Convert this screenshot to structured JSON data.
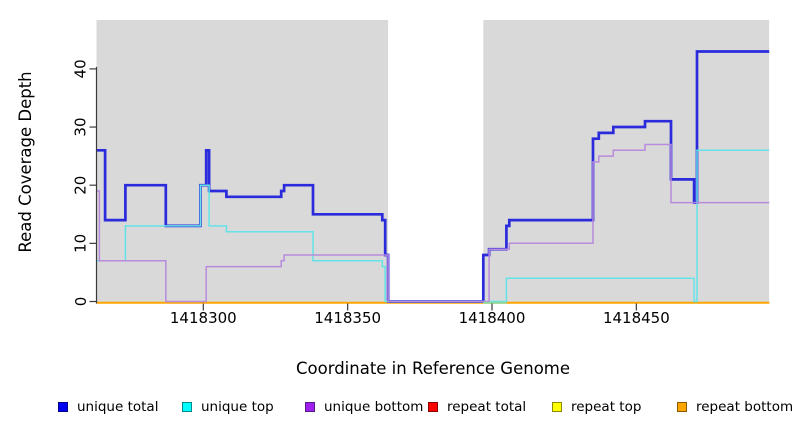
{
  "chart_data": {
    "type": "line",
    "subtype": "step",
    "title": "",
    "xlabel": "Coordinate in Reference Genome",
    "ylabel": "Read Coverage Depth",
    "xlim": [
      1418263,
      1418496
    ],
    "ylim": [
      0,
      48
    ],
    "x_ticks": [
      1418300,
      1418350,
      1418400,
      1418450
    ],
    "y_ticks": [
      0,
      10,
      20,
      30,
      40
    ],
    "grid": false,
    "background_color": "#D9D9D9",
    "background_regions": [
      {
        "from": 1418263,
        "to": 1418364
      },
      {
        "from": 1418397,
        "to": 1418496
      }
    ],
    "gap_region": {
      "from": 1418364,
      "to": 1418397
    },
    "axis_color": "#3a3a3a",
    "series": [
      {
        "name": "repeat total",
        "color": "#DD0000",
        "width": 1.5,
        "baseline_offset": 1.3,
        "steps": [
          [
            1418263,
            0
          ]
        ]
      },
      {
        "name": "repeat top",
        "color": "#F5F500",
        "width": 1.5,
        "baseline_offset": 1.3,
        "steps": [
          [
            1418263,
            0
          ]
        ]
      },
      {
        "name": "repeat bottom",
        "color": "#FFA500",
        "width": 2,
        "baseline_offset": 1.3,
        "steps": [
          [
            1418263,
            0
          ]
        ]
      },
      {
        "name": "unique total",
        "color": "#2B2BDC",
        "width": 2.7,
        "baseline_offset": 0,
        "steps": [
          [
            1418263,
            26
          ],
          [
            1418266,
            14
          ],
          [
            1418273,
            20
          ],
          [
            1418287,
            13
          ],
          [
            1418299,
            20
          ],
          [
            1418301,
            26
          ],
          [
            1418302,
            19
          ],
          [
            1418308,
            18
          ],
          [
            1418327,
            19
          ],
          [
            1418328,
            20
          ],
          [
            1418338,
            15
          ],
          [
            1418362,
            14
          ],
          [
            1418363,
            8
          ],
          [
            1418364,
            0
          ],
          [
            1418397,
            8
          ],
          [
            1418399,
            9
          ],
          [
            1418405,
            13
          ],
          [
            1418406,
            14
          ],
          [
            1418435,
            28
          ],
          [
            1418437,
            29
          ],
          [
            1418442,
            30
          ],
          [
            1418453,
            31
          ],
          [
            1418462,
            21
          ],
          [
            1418470,
            17
          ],
          [
            1418471,
            43
          ]
        ]
      },
      {
        "name": "unique top",
        "color": "#63E3E8",
        "width": 1.5,
        "baseline_offset": 0,
        "steps": [
          [
            1418263,
            7
          ],
          [
            1418273,
            13
          ],
          [
            1418299,
            20
          ],
          [
            1418302,
            13
          ],
          [
            1418308,
            12
          ],
          [
            1418338,
            7
          ],
          [
            1418362,
            6
          ],
          [
            1418363,
            0
          ],
          [
            1418405,
            4
          ],
          [
            1418470,
            0
          ],
          [
            1418471,
            26
          ]
        ]
      },
      {
        "name": "unique bottom",
        "color": "#B88BDD",
        "width": 1.5,
        "baseline_offset": 0,
        "steps": [
          [
            1418263,
            19
          ],
          [
            1418264,
            7
          ],
          [
            1418287,
            0
          ],
          [
            1418301,
            6
          ],
          [
            1418327,
            7
          ],
          [
            1418328,
            8
          ],
          [
            1418364,
            0
          ],
          [
            1418399,
            9
          ],
          [
            1418406,
            10
          ],
          [
            1418435,
            24
          ],
          [
            1418437,
            25
          ],
          [
            1418442,
            26
          ],
          [
            1418453,
            27
          ],
          [
            1418462,
            17
          ]
        ]
      }
    ],
    "overlap_blend_segments": [
      {
        "from": 1418397,
        "to": 1418405,
        "value": 0,
        "color": "#8CD9A4",
        "width": 2,
        "baseline_offset": 1.3,
        "meaning": "unique-top zero line blending over repeat-bottom orange"
      }
    ],
    "legend": {
      "position": "bottom",
      "entries": [
        {
          "label": "unique total",
          "fill": "#0000F5",
          "border": "#00008B"
        },
        {
          "label": "unique top",
          "fill": "#00FFFF",
          "border": "#008B8B"
        },
        {
          "label": "unique bottom",
          "fill": "#A020F0",
          "border": "#551A8B"
        },
        {
          "label": "repeat total",
          "fill": "#FF0000",
          "border": "#8B0000"
        },
        {
          "label": "repeat top",
          "fill": "#FFFF00",
          "border": "#8B8B00"
        },
        {
          "label": "repeat bottom",
          "fill": "#FFA500",
          "border": "#8B5A00"
        }
      ]
    }
  }
}
